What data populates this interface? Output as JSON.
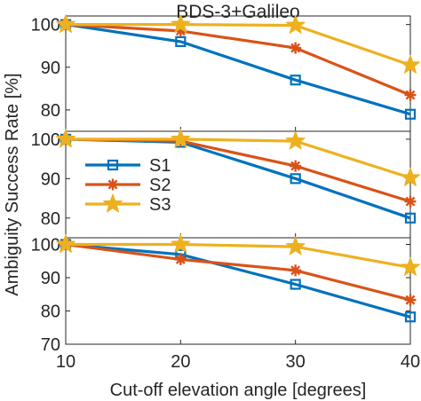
{
  "chart_data": {
    "type": "line",
    "title": "BDS-3+Galileo",
    "xlabel": "Cut-off elevation angle [degrees]",
    "ylabel": "Ambiguity Success Rate [%]",
    "x": [
      10,
      20,
      30,
      40
    ],
    "xlim": [
      10,
      40
    ],
    "x_ticks": [
      "10",
      "20",
      "30",
      "40"
    ],
    "grid": false,
    "legend": {
      "placement": "left, middle panel",
      "entries": [
        "S1",
        "S2",
        "S3"
      ]
    },
    "panels": [
      {
        "position": "top",
        "ylim": [
          75,
          102
        ],
        "y_ticks": [
          "80",
          "90",
          "100"
        ],
        "series": [
          {
            "name": "S1",
            "values": [
              100,
              96,
              87,
              79
            ]
          },
          {
            "name": "S2",
            "values": [
              100,
              98.5,
              94.5,
              83.5
            ]
          },
          {
            "name": "S3",
            "values": [
              100,
              100,
              99.8,
              90.5
            ]
          }
        ]
      },
      {
        "position": "middle",
        "ylim": [
          75,
          102
        ],
        "y_ticks": [
          "80",
          "90",
          "100"
        ],
        "series": [
          {
            "name": "S1",
            "values": [
              100,
              99.2,
              90,
              80
            ]
          },
          {
            "name": "S2",
            "values": [
              100,
              99.5,
              93.2,
              84.2
            ]
          },
          {
            "name": "S3",
            "values": [
              100,
              100,
              99.5,
              90.2
            ]
          }
        ]
      },
      {
        "position": "bottom",
        "ylim": [
          70,
          102
        ],
        "y_ticks": [
          "70",
          "80",
          "90",
          "100"
        ],
        "series": [
          {
            "name": "S1",
            "values": [
              100,
              97,
              88,
              78.2
            ]
          },
          {
            "name": "S2",
            "values": [
              100,
              95.5,
              92.2,
              83.3
            ]
          },
          {
            "name": "S3",
            "values": [
              100,
              100,
              99.3,
              93.1
            ]
          }
        ]
      }
    ],
    "series_styles": [
      {
        "name": "S1",
        "color": "#0072BD",
        "marker": "square"
      },
      {
        "name": "S2",
        "color": "#D95319",
        "marker": "asterisk"
      },
      {
        "name": "S3",
        "color": "#EDB120",
        "marker": "star"
      }
    ]
  }
}
